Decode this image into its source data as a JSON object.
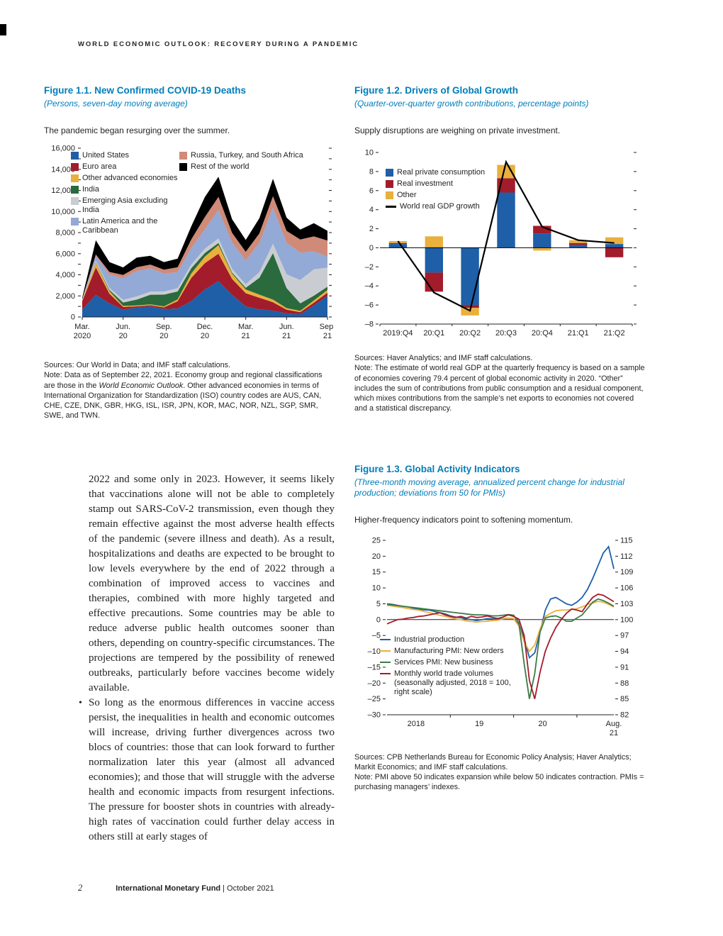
{
  "page": {
    "running_head": "WORLD ECONOMIC OUTLOOK: RECOVERY DURING A PANDEMIC",
    "page_number": "2",
    "footer_publisher": "International Monetary Fund",
    "footer_separator": "|",
    "footer_date": "October 2021"
  },
  "figure1": {
    "title": "Figure 1.1.  New Confirmed COVID-19 Deaths",
    "subtitle": "(Persons, seven-day moving average)",
    "lead": "The pandemic began resurging over the summer.",
    "sources": "Sources: Our World in Data; and IMF staff calculations.",
    "note_pre": "Note: Data as of September 22, 2021. Economy group and regional classifications are those in the ",
    "note_italic": "World Economic Outlook",
    "note_post": ". Other advanced economies in terms of International Organization for Standardization (ISO) country codes are AUS, CAN, CHE, CZE, DNK, GBR, HKG, ISL, ISR, JPN, KOR, MAC, NOR, NZL, SGP, SMR, SWE, and TWN."
  },
  "figure2": {
    "title": "Figure 1.2.  Drivers of Global Growth",
    "subtitle": "(Quarter-over-quarter growth contributions, percentage points)",
    "lead": "Supply disruptions are weighing on private investment.",
    "sources": "Sources: Haver Analytics; and IMF staff calculations.",
    "note": "Note: The estimate of world real GDP at the quarterly frequency is based on a sample of economies covering 79.4 percent of global economic activity in 2020. “Other” includes the sum of contributions from public consumption and a residual component, which mixes contributions from the sample’s net exports to economies not covered and a statistical discrepancy."
  },
  "figure3": {
    "title": "Figure 1.3.  Global Activity Indicators",
    "subtitle": "(Three-month moving average, annualized percent change for industrial production; deviations from 50 for PMIs)",
    "lead": "Higher-frequency indicators point to softening momentum.",
    "sources": "Sources: CPB Netherlands Bureau for Economic Policy Analysis; Haver Analytics; Markit Economics; and IMF staff calculations.",
    "note": "Note: PMI above 50 indicates expansion while below 50 indicates contraction. PMIs = purchasing managers’ indexes."
  },
  "body": {
    "para1": "2022 and some only in 2023. However, it seems likely that vaccinations alone will not be able to completely stamp out SARS-CoV-2 transmission, even though they remain effective against the most adverse health effects of the pandemic (severe illness and death). As a result, hospitalizations and deaths are expected to be brought to low levels everywhere by the end of 2022 through a combination of improved access to vaccines and therapies, combined with more highly targeted and effective precautions. Some countries may be able to reduce adverse public health outcomes sooner than others, depending on country-specific circumstances. The projections are tempered by the possibility of renewed outbreaks, particularly before vaccines become widely available.",
    "bullet_marker": "•",
    "bullet_text": "So long as the enormous differences in vaccine access persist, the inequalities in health and economic outcomes will increase, driving further divergences across two blocs of countries: those that can look forward to further normalization later this year (almost all advanced economies); and those that will struggle with the adverse health and economic impacts from resurgent infections. The pressure for booster shots in countries with already-high rates of vaccination could further delay access in others still at early stages of"
  },
  "chart_data": [
    {
      "type": "area",
      "stacked": true,
      "title": "New Confirmed COVID-19 Deaths (persons, seven-day moving average)",
      "ylim": [
        0,
        16000
      ],
      "y_tick_step": 2000,
      "y_minor_step": 1000,
      "x_label_indices": [
        0,
        3,
        6,
        9,
        12,
        15,
        18
      ],
      "x_labels": [
        [
          "Mar.",
          "2020"
        ],
        [
          "Jun.",
          "20"
        ],
        [
          "Sep.",
          "20"
        ],
        [
          "Dec.",
          "20"
        ],
        [
          "Mar.",
          "21"
        ],
        [
          "Jun.",
          "21"
        ],
        [
          "Sep.",
          "21"
        ]
      ],
      "series": [
        {
          "name": "United States",
          "color": "#1e5fa8",
          "values": [
            700,
            2100,
            1300,
            700,
            900,
            1000,
            750,
            800,
            1500,
            2600,
            3400,
            2100,
            1000,
            720,
            600,
            340,
            260,
            1100,
            2000
          ]
        },
        {
          "name": "Euro area",
          "color": "#a21c2b",
          "values": [
            800,
            2600,
            900,
            250,
            110,
            110,
            160,
            700,
            2200,
            2500,
            2600,
            1500,
            1250,
            1100,
            800,
            350,
            200,
            250,
            300
          ]
        },
        {
          "name": "Other advanced economies",
          "color": "#e9b03d",
          "values": [
            100,
            420,
            250,
            100,
            80,
            80,
            90,
            160,
            420,
            620,
            820,
            500,
            350,
            300,
            250,
            150,
            120,
            210,
            260
          ]
        },
        {
          "name": "India",
          "color": "#2a6a3c",
          "values": [
            10,
            60,
            110,
            320,
            560,
            920,
            1120,
            760,
            500,
            350,
            200,
            110,
            160,
            1600,
            4400,
            1900,
            720,
            460,
            310
          ]
        },
        {
          "name": "Emerging Asia excluding India",
          "color": "#c9cdd1",
          "values": [
            50,
            160,
            200,
            250,
            300,
            300,
            300,
            310,
            350,
            400,
            420,
            360,
            350,
            520,
            900,
            1300,
            2200,
            2500,
            1800
          ]
        },
        {
          "name": "Latin America and the Caribbean",
          "color": "#93a9d6",
          "values": [
            30,
            420,
            1250,
            2050,
            2400,
            2200,
            1700,
            1520,
            1550,
            1850,
            2700,
            2500,
            2250,
            2750,
            3400,
            3000,
            2600,
            1700,
            1050
          ]
        },
        {
          "name": "Russia, Turkey, and South Africa",
          "color": "#d08a78",
          "values": [
            10,
            160,
            260,
            310,
            360,
            360,
            360,
            460,
            820,
            1150,
            1250,
            900,
            820,
            920,
            1100,
            1120,
            1250,
            1420,
            1520
          ]
        },
        {
          "name": "Rest of the world",
          "color": "#000000",
          "values": [
            120,
            1350,
            930,
            720,
            920,
            830,
            720,
            820,
            1250,
            1900,
            1900,
            1300,
            1120,
            1450,
            1650,
            1250,
            930,
            1250,
            930
          ]
        }
      ]
    },
    {
      "type": "bar",
      "stacked": true,
      "title": "Drivers of Global Growth (quarter-over-quarter growth contributions, percentage points)",
      "ylim": [
        -8,
        10
      ],
      "y_tick_step": 2,
      "categories": [
        "2019:Q4",
        "20:Q1",
        "20:Q2",
        "20:Q3",
        "20:Q4",
        "21:Q1",
        "21:Q2"
      ],
      "series": [
        {
          "name": "Real private consumption",
          "color": "#1e5fa8",
          "values": [
            0.4,
            -2.6,
            -6.0,
            5.8,
            1.5,
            0.3,
            0.4
          ]
        },
        {
          "name": "Real investment",
          "color": "#a21c2b",
          "values": [
            0.1,
            -2.0,
            -0.3,
            1.5,
            0.8,
            0.2,
            -1.0
          ]
        },
        {
          "name": "Other",
          "color": "#e9b03d",
          "values": [
            0.2,
            1.2,
            -0.8,
            1.4,
            -0.3,
            0.3,
            0.7
          ]
        }
      ],
      "line_series": {
        "name": "World real GDP growth",
        "color": "#000000",
        "values": [
          0.7,
          -4.7,
          -6.6,
          9.0,
          2.2,
          0.8,
          0.5
        ]
      }
    },
    {
      "type": "line",
      "title": "Global Activity Indicators",
      "left_ylim": [
        -30,
        25
      ],
      "left_tick_step": 5,
      "right_ylim": [
        82,
        115
      ],
      "right_tick_step": 3,
      "x_boundary_indices": [
        12,
        24,
        36
      ],
      "x_labels": [
        {
          "index": 5.5,
          "lines": [
            "2018"
          ]
        },
        {
          "index": 17.5,
          "lines": [
            "19"
          ]
        },
        {
          "index": 29.5,
          "lines": [
            "20"
          ]
        },
        {
          "index": 43,
          "lines": [
            "Aug.",
            "21"
          ]
        }
      ],
      "series": [
        {
          "name": "Industrial production",
          "color": "#1e5fa8",
          "scale": "left",
          "values": [
            5.0,
            4.8,
            4.5,
            4.2,
            4.0,
            3.6,
            3.3,
            3.1,
            3.0,
            2.6,
            2.2,
            1.8,
            1.2,
            0.8,
            0.6,
            0.2,
            0.0,
            -0.3,
            0.0,
            0.3,
            0.2,
            0.0,
            0.3,
            0.5,
            0.3,
            -1.5,
            -6.0,
            -12.0,
            -10.5,
            -4.0,
            3.0,
            6.5,
            7.0,
            6.0,
            5.0,
            4.5,
            5.5,
            7.0,
            9.5,
            13.0,
            17.0,
            21.0,
            23.0,
            16.0
          ]
        },
        {
          "name": "Manufacturing PMI: New orders",
          "color": "#e9b03d",
          "scale": "left",
          "values": [
            4.5,
            4.3,
            4.0,
            3.8,
            3.5,
            3.2,
            3.0,
            2.6,
            2.2,
            1.8,
            1.4,
            1.0,
            0.6,
            0.2,
            0.0,
            -0.4,
            -0.6,
            -0.8,
            -0.6,
            -0.5,
            -0.3,
            -0.2,
            0.2,
            0.5,
            0.3,
            -2.0,
            -7.0,
            -10.0,
            -8.0,
            -3.0,
            1.0,
            2.0,
            2.8,
            3.0,
            3.0,
            3.2,
            3.5,
            4.0,
            4.8,
            5.2,
            5.8,
            5.5,
            4.8,
            4.0
          ]
        },
        {
          "name": "Services PMI: New business",
          "color": "#3d7a44",
          "scale": "left",
          "values": [
            4.8,
            4.6,
            4.4,
            4.2,
            4.0,
            3.8,
            3.6,
            3.4,
            3.2,
            3.0,
            2.8,
            2.6,
            2.4,
            2.2,
            2.0,
            1.8,
            1.6,
            1.5,
            1.5,
            1.4,
            1.2,
            1.2,
            1.4,
            1.6,
            1.4,
            -1.0,
            -14.0,
            -25.0,
            -17.0,
            -4.0,
            0.5,
            1.0,
            1.2,
            0.5,
            -0.5,
            -0.5,
            0.5,
            1.5,
            3.5,
            5.5,
            6.5,
            6.0,
            5.2,
            4.2
          ]
        },
        {
          "name": "Monthly world trade volumes (seasonally adjusted, 2018 = 100, right scale)",
          "color": "#a21c2b",
          "scale": "right",
          "values": [
            99.2,
            99.6,
            100.0,
            100.1,
            100.3,
            100.4,
            100.6,
            100.7,
            100.9,
            101.1,
            101.3,
            100.9,
            100.6,
            100.4,
            100.6,
            100.3,
            100.6,
            100.4,
            100.5,
            100.7,
            100.4,
            100.2,
            100.5,
            100.9,
            100.6,
            100.1,
            97.0,
            88.5,
            85.0,
            90.0,
            94.0,
            96.5,
            98.5,
            100.0,
            101.2,
            102.0,
            101.8,
            101.5,
            103.0,
            104.2,
            104.8,
            104.6,
            104.0,
            103.4
          ]
        }
      ]
    }
  ]
}
